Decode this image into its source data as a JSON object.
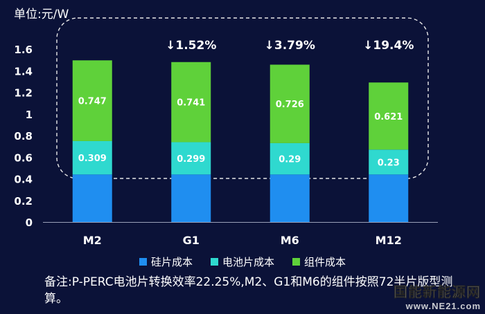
{
  "unit_label": "单位:元/W",
  "colors": {
    "background": "#0b1238",
    "silicon": "#1f8ef0",
    "cell": "#2fd9cf",
    "module": "#5fd13a"
  },
  "chart_data": {
    "type": "bar",
    "stacked": true,
    "categories": [
      "M2",
      "G1",
      "M6",
      "M12"
    ],
    "series": [
      {
        "name": "硅片成本",
        "values": [
          0.44,
          0.44,
          0.44,
          0.44
        ]
      },
      {
        "name": "电池片成本",
        "values": [
          0.309,
          0.299,
          0.29,
          0.23
        ]
      },
      {
        "name": "组件成本",
        "values": [
          0.747,
          0.741,
          0.726,
          0.621
        ]
      }
    ],
    "data_labels": {
      "电池片成本": [
        "0.309",
        "0.299",
        "0.29",
        "0.23"
      ],
      "组件成本": [
        "0.747",
        "0.741",
        "0.726",
        "0.621"
      ]
    },
    "annotations": [
      "",
      "↓1.52%",
      "↓3.79%",
      "↓19.4%"
    ],
    "yticks": [
      "0",
      "0.2",
      "0.4",
      "0.6",
      "0.8",
      "1",
      "1.2",
      "1.4",
      "1.6"
    ],
    "ylim": [
      0,
      1.6
    ],
    "xlabel": "",
    "ylabel": "",
    "legend_position": "bottom",
    "grid": false
  },
  "note": "备注:P-PERC电池片转换效率22.25%,M2、G1和M6的组件按照72半片版型测算。",
  "watermark": {
    "cn": "国能新能源网",
    "url": "www.NE21.com"
  }
}
